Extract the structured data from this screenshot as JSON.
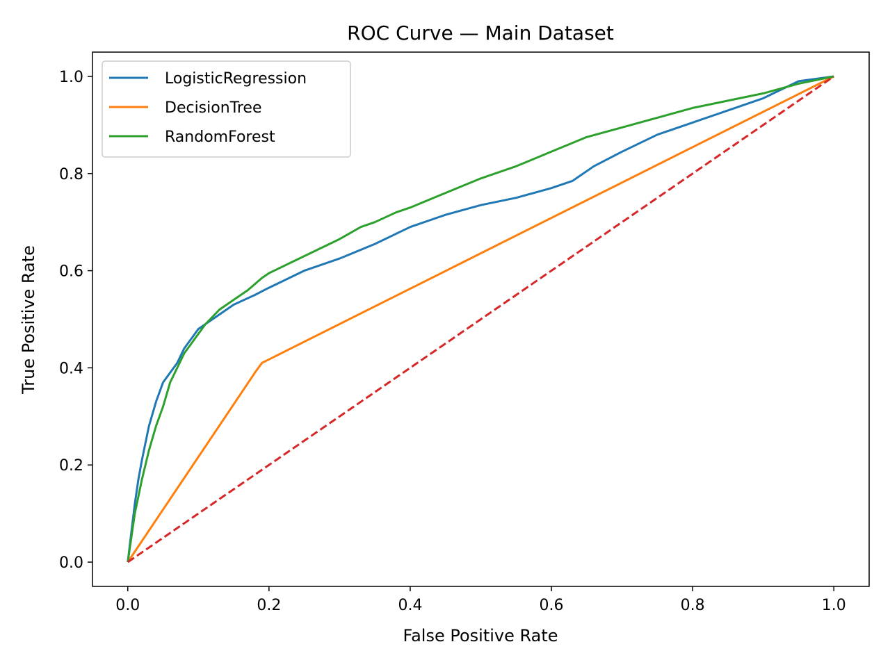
{
  "chart_data": {
    "type": "line",
    "title": "ROC Curve — Main Dataset",
    "xlabel": "False Positive Rate",
    "ylabel": "True Positive Rate",
    "xlim": [
      -0.05,
      1.05
    ],
    "ylim": [
      -0.05,
      1.05
    ],
    "xticks": [
      "0.0",
      "0.2",
      "0.4",
      "0.6",
      "0.8",
      "1.0"
    ],
    "yticks": [
      "0.0",
      "0.2",
      "0.4",
      "0.6",
      "0.8",
      "1.0"
    ],
    "grid": false,
    "legend": {
      "placement": "top-left"
    },
    "series": [
      {
        "name": "LogisticRegression",
        "color": "#1f77b4",
        "x": [
          0.0,
          0.005,
          0.01,
          0.015,
          0.02,
          0.03,
          0.04,
          0.05,
          0.06,
          0.07,
          0.08,
          0.09,
          0.1,
          0.12,
          0.15,
          0.18,
          0.2,
          0.25,
          0.3,
          0.35,
          0.4,
          0.45,
          0.5,
          0.55,
          0.6,
          0.63,
          0.66,
          0.7,
          0.75,
          0.8,
          0.85,
          0.9,
          0.95,
          1.0
        ],
        "y": [
          0.0,
          0.06,
          0.12,
          0.17,
          0.21,
          0.28,
          0.33,
          0.37,
          0.39,
          0.41,
          0.44,
          0.46,
          0.48,
          0.5,
          0.53,
          0.55,
          0.565,
          0.6,
          0.625,
          0.655,
          0.69,
          0.715,
          0.735,
          0.75,
          0.77,
          0.785,
          0.815,
          0.845,
          0.88,
          0.905,
          0.93,
          0.955,
          0.99,
          1.0
        ]
      },
      {
        "name": "DecisionTree",
        "color": "#ff7f0e",
        "x": [
          0.0,
          0.18,
          0.19,
          1.0
        ],
        "y": [
          0.0,
          0.39,
          0.41,
          1.0
        ]
      },
      {
        "name": "RandomForest",
        "color": "#2ca02c",
        "x": [
          0.0,
          0.005,
          0.01,
          0.02,
          0.03,
          0.04,
          0.05,
          0.06,
          0.07,
          0.08,
          0.09,
          0.1,
          0.11,
          0.13,
          0.15,
          0.17,
          0.19,
          0.2,
          0.25,
          0.3,
          0.33,
          0.35,
          0.38,
          0.4,
          0.45,
          0.5,
          0.55,
          0.6,
          0.65,
          0.7,
          0.75,
          0.8,
          0.85,
          0.9,
          0.95,
          1.0
        ],
        "y": [
          0.0,
          0.05,
          0.1,
          0.17,
          0.23,
          0.28,
          0.32,
          0.37,
          0.4,
          0.43,
          0.45,
          0.47,
          0.49,
          0.52,
          0.54,
          0.56,
          0.585,
          0.595,
          0.63,
          0.665,
          0.69,
          0.7,
          0.72,
          0.73,
          0.76,
          0.79,
          0.815,
          0.845,
          0.875,
          0.895,
          0.915,
          0.935,
          0.95,
          0.965,
          0.985,
          1.0
        ]
      },
      {
        "name": "",
        "color": "#d62728",
        "dashed": true,
        "x": [
          0.0,
          1.0
        ],
        "y": [
          0.0,
          1.0
        ]
      }
    ]
  }
}
